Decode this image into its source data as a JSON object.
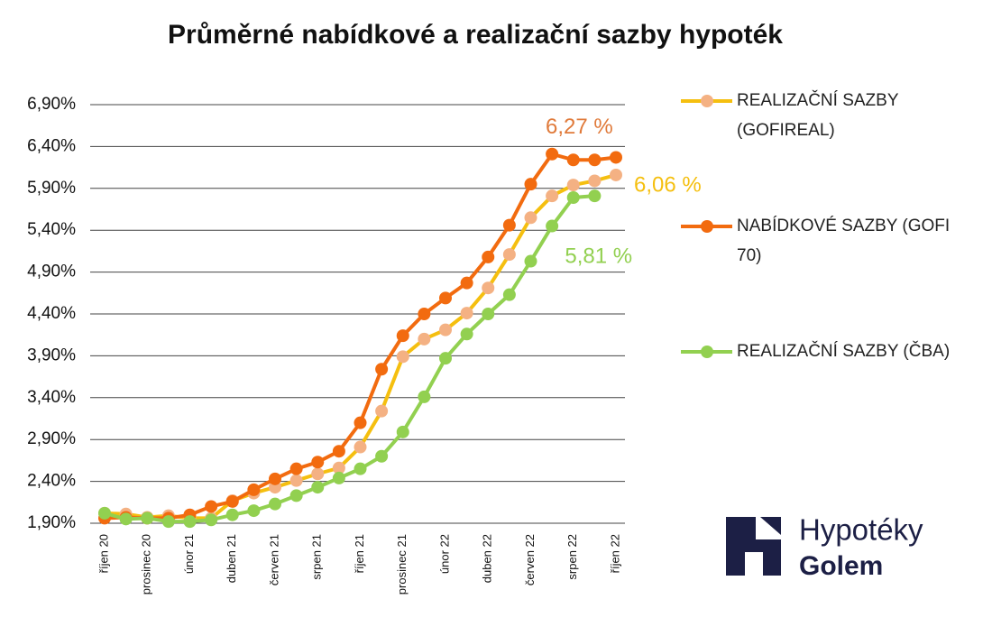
{
  "chart_data": {
    "type": "line",
    "title": "Průměrné nabídkové a realizační sazby hypoték",
    "categories": [
      "říjen 20",
      null,
      "prosinec 20",
      null,
      "únor 21",
      null,
      "duben 21",
      null,
      "červen 21",
      null,
      "srpen 21",
      null,
      "říjen 21",
      null,
      "prosinec 21",
      null,
      "únor 22",
      null,
      "duben 22",
      null,
      "červen 22",
      null,
      "srpen 22",
      null,
      "říjen 22"
    ],
    "series": [
      {
        "name": "REALIZAČNÍ SAZBY (GOFIREAL)",
        "color": "#f5bf0f",
        "marker_color": "#f4b183",
        "values": [
          2.02,
          2.01,
          1.97,
          1.99,
          1.96,
          1.96,
          2.17,
          2.26,
          2.33,
          2.41,
          2.49,
          2.56,
          2.81,
          3.24,
          3.89,
          4.1,
          4.21,
          4.41,
          4.71,
          5.11,
          5.55,
          5.81,
          5.94,
          5.99,
          6.06
        ],
        "value_labels": [
          null,
          null,
          null,
          null,
          null,
          null,
          null,
          null,
          null,
          null,
          null,
          null,
          null,
          null,
          null,
          null,
          null,
          null,
          null,
          null,
          null,
          null,
          null,
          null,
          "6,06 %"
        ]
      },
      {
        "name": "NABÍDKOVÉ SAZBY (GOFI 70)",
        "color": "#f26b0f",
        "marker_color": "#f26b0f",
        "values": [
          1.96,
          1.97,
          1.96,
          1.96,
          2.0,
          2.1,
          2.16,
          2.3,
          2.43,
          2.55,
          2.63,
          2.76,
          3.1,
          3.74,
          4.14,
          4.4,
          4.59,
          4.77,
          5.08,
          5.46,
          5.95,
          6.31,
          6.24,
          6.24,
          6.27
        ],
        "value_labels": [
          null,
          null,
          null,
          null,
          null,
          null,
          null,
          null,
          null,
          null,
          null,
          null,
          null,
          null,
          null,
          null,
          null,
          null,
          null,
          null,
          null,
          null,
          null,
          null,
          "6,27 %"
        ]
      },
      {
        "name": "REALIZAČNÍ SAZBY (ČBA)",
        "color": "#92d050",
        "marker_color": "#92d050",
        "values": [
          2.02,
          1.95,
          1.96,
          1.92,
          1.92,
          1.94,
          2.0,
          2.05,
          2.13,
          2.23,
          2.33,
          2.44,
          2.55,
          2.7,
          2.99,
          3.41,
          3.87,
          4.16,
          4.4,
          4.63,
          5.03,
          5.45,
          5.79,
          5.81,
          null
        ],
        "value_labels": [
          null,
          null,
          null,
          null,
          null,
          null,
          null,
          null,
          null,
          null,
          null,
          null,
          null,
          null,
          null,
          null,
          null,
          null,
          null,
          null,
          null,
          null,
          null,
          "5,81 %",
          null
        ]
      }
    ],
    "ylim": [
      1.9,
      6.9
    ],
    "yticks": [
      {
        "value": 1.9,
        "label": "1,90%"
      },
      {
        "value": 2.4,
        "label": "2,40%"
      },
      {
        "value": 2.9,
        "label": "2,90%"
      },
      {
        "value": 3.4,
        "label": "3,40%"
      },
      {
        "value": 3.9,
        "label": "3,90%"
      },
      {
        "value": 4.4,
        "label": "4,40%"
      },
      {
        "value": 4.9,
        "label": "4,90%"
      },
      {
        "value": 5.4,
        "label": "5,40%"
      },
      {
        "value": 5.9,
        "label": "5,90%"
      },
      {
        "value": 6.4,
        "label": "6,40%"
      },
      {
        "value": 6.9,
        "label": "6,90%"
      }
    ],
    "grid": true,
    "legend": "right"
  },
  "logo": {
    "line1": "Hypotéky",
    "line2": "Golem"
  }
}
